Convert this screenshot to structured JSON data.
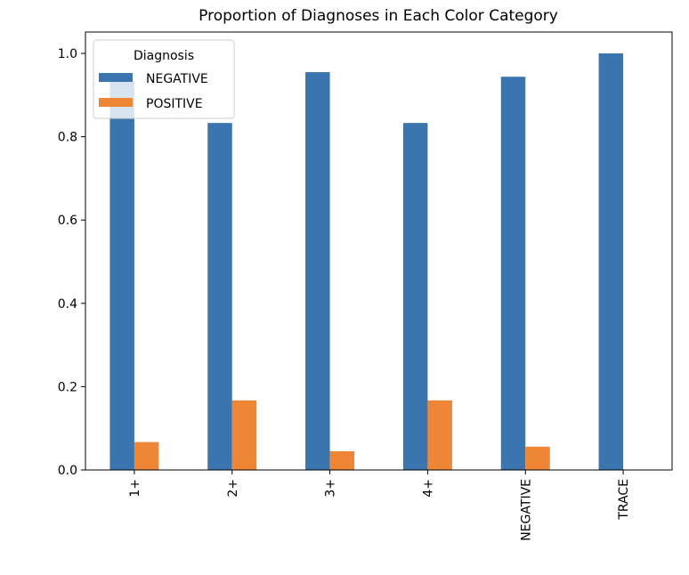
{
  "chart_data": {
    "type": "bar",
    "title": "Proportion of Diagnoses in Each Color Category",
    "xlabel": "",
    "ylabel": "",
    "categories": [
      "1+",
      "2+",
      "3+",
      "4+",
      "NEGATIVE",
      "TRACE"
    ],
    "series": [
      {
        "name": "NEGATIVE",
        "color": "#3a75af",
        "values": [
          0.933,
          0.833,
          0.955,
          0.833,
          0.944,
          1.0
        ]
      },
      {
        "name": "POSITIVE",
        "color": "#ef8636",
        "values": [
          0.067,
          0.167,
          0.045,
          0.167,
          0.056,
          0.0
        ]
      }
    ],
    "ylim": [
      0,
      1.05
    ],
    "yticks": [
      "0.0",
      "0.2",
      "0.4",
      "0.6",
      "0.8",
      "1.0"
    ],
    "grid": false,
    "legend": {
      "title": "Diagnosis",
      "placement": "top-left"
    }
  }
}
